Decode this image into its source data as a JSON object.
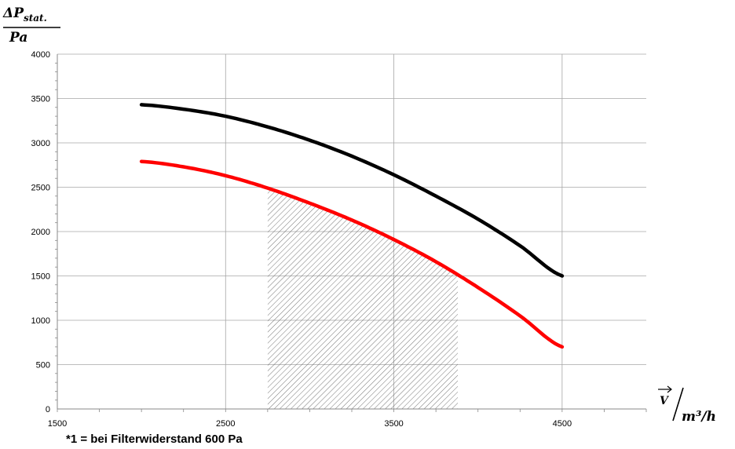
{
  "chart_data": {
    "type": "line",
    "xlim": [
      1500,
      5000
    ],
    "ylim": [
      0,
      4000
    ],
    "x_ticks": [
      1500,
      2500,
      3500,
      4500
    ],
    "y_ticks": [
      0,
      500,
      1000,
      1500,
      2000,
      2500,
      3000,
      3500,
      4000
    ],
    "grid": true,
    "ylabel": {
      "numerator": "ΔP",
      "subscript": "stat.",
      "denominator": "Pa"
    },
    "xlabel": {
      "numerator": "V",
      "denominator": "m³/h"
    },
    "series": [
      {
        "color": "#000000",
        "x": [
          2000,
          2250,
          2500,
          2750,
          3000,
          3250,
          3500,
          3750,
          4000,
          4250,
          4500
        ],
        "y": [
          3430,
          3380,
          3300,
          3180,
          3030,
          2850,
          2640,
          2400,
          2140,
          1840,
          1500
        ]
      },
      {
        "color": "#ff0000",
        "x": [
          2000,
          2250,
          2500,
          2750,
          3000,
          3250,
          3500,
          3750,
          4000,
          4250,
          4500
        ],
        "y": [
          2790,
          2730,
          2630,
          2490,
          2320,
          2130,
          1910,
          1660,
          1370,
          1050,
          700
        ]
      }
    ],
    "hatched_region": {
      "x_from": 2750,
      "x_to": 3880,
      "bounded_by_series": 1
    },
    "footnote": "*1 = bei Filterwiderstand 600 Pa"
  }
}
